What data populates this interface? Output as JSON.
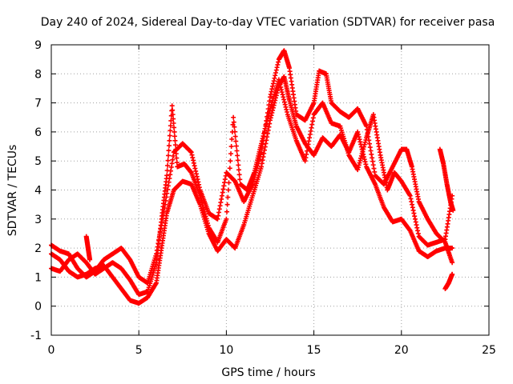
{
  "chart_data": {
    "type": "scatter",
    "title": "Day 240 of 2024, Sidereal Day-to-day VTEC variation (SDTVAR) for receiver pasa",
    "xlabel": "GPS time / hours",
    "ylabel": "SDTVAR / TECUs",
    "xlim": [
      0,
      25
    ],
    "ylim": [
      -1,
      9
    ],
    "xticks": [
      "0",
      "5",
      "10",
      "15",
      "20",
      "25"
    ],
    "yticks": [
      "-1",
      "0",
      "1",
      "2",
      "3",
      "4",
      "5",
      "6",
      "7",
      "8",
      "9"
    ],
    "grid": true,
    "marker": "+",
    "color": "#ff0000",
    "series": [
      {
        "points": [
          [
            0.0,
            1.8
          ],
          [
            0.5,
            1.6
          ],
          [
            1.0,
            1.2
          ],
          [
            1.5,
            1.0
          ],
          [
            2.0,
            1.1
          ],
          [
            2.5,
            1.3
          ],
          [
            3.0,
            1.4
          ],
          [
            3.5,
            1.0
          ],
          [
            4.0,
            0.6
          ],
          [
            4.5,
            0.2
          ],
          [
            5.0,
            0.1
          ],
          [
            5.5,
            0.3
          ],
          [
            6.0,
            0.8
          ],
          [
            6.3,
            2.0
          ],
          [
            6.6,
            3.2
          ],
          [
            7.0,
            4.0
          ],
          [
            7.5,
            4.3
          ],
          [
            8.0,
            4.2
          ],
          [
            8.5,
            3.5
          ],
          [
            9.0,
            2.5
          ],
          [
            9.5,
            1.9
          ],
          [
            10.0,
            2.3
          ],
          [
            10.5,
            2.0
          ],
          [
            11.0,
            2.8
          ],
          [
            11.5,
            3.8
          ],
          [
            12.0,
            4.8
          ],
          [
            12.5,
            6.4
          ],
          [
            13.0,
            7.6
          ],
          [
            13.3,
            7.9
          ],
          [
            13.6,
            7.1
          ],
          [
            14.0,
            6.2
          ],
          [
            14.5,
            5.6
          ],
          [
            15.0,
            5.2
          ],
          [
            15.5,
            5.8
          ],
          [
            16.0,
            5.5
          ],
          [
            16.5,
            5.9
          ],
          [
            17.0,
            5.3
          ],
          [
            17.5,
            6.0
          ],
          [
            18.0,
            4.8
          ],
          [
            18.5,
            4.2
          ],
          [
            19.0,
            3.4
          ],
          [
            19.5,
            2.9
          ],
          [
            20.0,
            3.0
          ],
          [
            20.5,
            2.6
          ],
          [
            21.0,
            1.9
          ],
          [
            21.5,
            1.7
          ],
          [
            22.0,
            1.9
          ],
          [
            22.5,
            2.0
          ],
          [
            22.9,
            2.0
          ]
        ]
      },
      {
        "points": [
          [
            0.0,
            2.1
          ],
          [
            0.5,
            1.9
          ],
          [
            1.0,
            1.8
          ],
          [
            1.5,
            1.3
          ],
          [
            2.0,
            1.0
          ],
          [
            2.5,
            1.2
          ],
          [
            3.0,
            1.6
          ],
          [
            3.5,
            1.8
          ],
          [
            4.0,
            2.0
          ],
          [
            4.5,
            1.6
          ],
          [
            5.0,
            1.0
          ],
          [
            5.5,
            0.8
          ],
          [
            6.0,
            1.8
          ],
          [
            6.5,
            3.5
          ],
          [
            7.0,
            5.3
          ],
          [
            7.5,
            5.6
          ],
          [
            8.0,
            5.3
          ],
          [
            8.5,
            4.0
          ],
          [
            9.0,
            3.2
          ],
          [
            9.5,
            3.0
          ],
          [
            10.0,
            4.6
          ],
          [
            10.5,
            4.3
          ],
          [
            11.0,
            3.6
          ],
          [
            11.5,
            4.2
          ],
          [
            12.0,
            5.3
          ],
          [
            12.5,
            7.2
          ],
          [
            13.0,
            8.5
          ],
          [
            13.3,
            8.8
          ],
          [
            13.6,
            8.2
          ],
          [
            14.0,
            6.6
          ],
          [
            14.5,
            6.4
          ],
          [
            15.0,
            7.0
          ],
          [
            15.3,
            8.1
          ],
          [
            15.7,
            8.0
          ],
          [
            16.0,
            7.0
          ],
          [
            16.5,
            6.7
          ],
          [
            17.0,
            6.5
          ],
          [
            17.5,
            6.8
          ],
          [
            18.0,
            6.2
          ],
          [
            18.5,
            4.5
          ],
          [
            19.0,
            4.2
          ],
          [
            19.5,
            4.8
          ],
          [
            20.0,
            5.4
          ],
          [
            20.3,
            5.4
          ],
          [
            20.6,
            4.8
          ],
          [
            21.0,
            3.6
          ],
          [
            21.5,
            3.0
          ],
          [
            22.0,
            2.5
          ],
          [
            22.5,
            2.2
          ],
          [
            22.9,
            1.5
          ]
        ]
      },
      {
        "points": [
          [
            0.0,
            1.3
          ],
          [
            0.5,
            1.2
          ],
          [
            1.0,
            1.6
          ],
          [
            1.5,
            1.8
          ],
          [
            2.0,
            1.5
          ],
          [
            2.5,
            1.1
          ],
          [
            3.0,
            1.3
          ],
          [
            3.5,
            1.5
          ],
          [
            4.0,
            1.3
          ],
          [
            4.5,
            0.9
          ],
          [
            5.0,
            0.4
          ],
          [
            5.5,
            0.5
          ],
          [
            6.0,
            1.5
          ],
          [
            6.3,
            3.0
          ],
          [
            6.6,
            4.5
          ],
          [
            6.9,
            6.9
          ],
          [
            7.2,
            4.8
          ],
          [
            7.6,
            4.9
          ],
          [
            8.0,
            4.6
          ],
          [
            8.5,
            3.8
          ],
          [
            9.0,
            2.7
          ],
          [
            9.5,
            2.2
          ],
          [
            10.0,
            3.0
          ],
          [
            10.4,
            6.5
          ],
          [
            10.8,
            4.2
          ],
          [
            11.2,
            4.0
          ],
          [
            11.6,
            4.6
          ],
          [
            12.0,
            5.6
          ],
          [
            12.5,
            6.8
          ],
          [
            13.0,
            7.8
          ],
          [
            13.5,
            6.6
          ],
          [
            14.0,
            5.7
          ],
          [
            14.5,
            5.0
          ],
          [
            15.0,
            6.6
          ],
          [
            15.5,
            7.0
          ],
          [
            16.0,
            6.3
          ],
          [
            16.5,
            6.2
          ],
          [
            17.0,
            5.2
          ],
          [
            17.5,
            4.7
          ],
          [
            18.0,
            5.8
          ],
          [
            18.4,
            6.6
          ],
          [
            18.8,
            5.2
          ],
          [
            19.2,
            4.0
          ],
          [
            19.6,
            4.6
          ],
          [
            20.0,
            4.3
          ],
          [
            20.5,
            3.8
          ],
          [
            21.0,
            2.4
          ],
          [
            21.5,
            2.1
          ],
          [
            22.0,
            2.2
          ],
          [
            22.5,
            2.3
          ],
          [
            22.9,
            3.8
          ]
        ]
      },
      {
        "points": [
          [
            22.2,
            5.4
          ],
          [
            22.4,
            4.9
          ],
          [
            22.6,
            4.2
          ],
          [
            22.8,
            3.6
          ],
          [
            22.95,
            3.3
          ]
        ]
      },
      {
        "points": [
          [
            22.5,
            0.6
          ],
          [
            22.7,
            0.8
          ],
          [
            22.9,
            1.1
          ]
        ]
      },
      {
        "points": [
          [
            2.0,
            2.4
          ],
          [
            2.1,
            2.0
          ],
          [
            2.2,
            1.6
          ]
        ]
      }
    ]
  }
}
